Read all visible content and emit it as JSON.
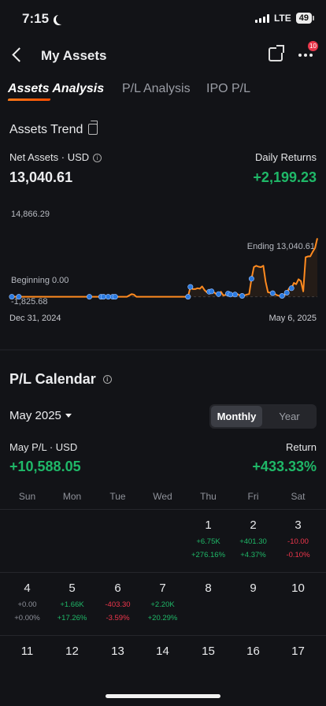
{
  "status": {
    "time": "7:15",
    "network": "LTE",
    "battery": "49"
  },
  "nav": {
    "title": "My Assets",
    "badge": "10"
  },
  "tabs": [
    {
      "label": "Assets Analysis",
      "active": true
    },
    {
      "label": "P/L Analysis",
      "active": false
    },
    {
      "label": "IPO P/L",
      "active": false
    }
  ],
  "trend": {
    "title": "Assets Trend",
    "net_assets_label": "Net Assets · USD",
    "net_assets_value": "13,040.61",
    "daily_returns_label": "Daily Returns",
    "daily_returns_value": "+2,199.23"
  },
  "chart_data": {
    "type": "line",
    "y_max_label": "14,866.29",
    "y_min_label": "-1,825.68",
    "beginning_label": "Beginning 0.00",
    "ending_label": "Ending 13,040.61",
    "start_date": "Dec 31, 2024",
    "end_date": "May 6, 2025",
    "ylim": [
      -1825.68,
      14866.29
    ],
    "line_color": "#FF8A1F",
    "marker_color": "#2A7AE0",
    "values": [
      0,
      0,
      0,
      0,
      0,
      0,
      0,
      0,
      0,
      0,
      0,
      0,
      0,
      0,
      0,
      0,
      0,
      0,
      0,
      0,
      0,
      0,
      0,
      0,
      0,
      0,
      0,
      0,
      0,
      0,
      0,
      0,
      0,
      0,
      0,
      0,
      0,
      0,
      0,
      0,
      0,
      0,
      0,
      0,
      0,
      0,
      0,
      0,
      0,
      0,
      0,
      300,
      600,
      450,
      0,
      0,
      0,
      0,
      0,
      0,
      0,
      0,
      0,
      0,
      0,
      0,
      0,
      0,
      0,
      0,
      0,
      0,
      0,
      0,
      0,
      0,
      0,
      2200,
      1700,
      1700,
      1900,
      1800,
      2300,
      1500,
      1000,
      1100,
      1200,
      1000,
      600,
      600,
      1100,
      300,
      400,
      700,
      500,
      300,
      500,
      600,
      300,
      200,
      300,
      500,
      600,
      4000,
      6600,
      6900,
      6700,
      6600,
      6900,
      3400,
      1000,
      900,
      800,
      600,
      300,
      200,
      200,
      300,
      900,
      1900,
      1900,
      3100,
      2800,
      3900,
      3500,
      1200,
      8800,
      9000,
      9000,
      10000,
      10841.38,
      13040.61
    ],
    "marker_indices": [
      1,
      4,
      34,
      39,
      40,
      42,
      44,
      45,
      76,
      77,
      85,
      86,
      89,
      93,
      94,
      96,
      99,
      103,
      112,
      116,
      118,
      120
    ]
  },
  "calendar": {
    "title": "P/L Calendar",
    "month": "May 2025",
    "seg_monthly": "Monthly",
    "seg_year": "Year",
    "month_pl_label": "May P/L · USD",
    "month_pl_value": "+10,588.05",
    "return_label": "Return",
    "return_value": "+433.33%",
    "weekdays": [
      "Sun",
      "Mon",
      "Tue",
      "Wed",
      "Thu",
      "Fri",
      "Sat"
    ],
    "days": [
      {
        "day": "1",
        "pl": "+6.75K",
        "ret": "+276.16%",
        "tone": "green"
      },
      {
        "day": "2",
        "pl": "+401.30",
        "ret": "+4.37%",
        "tone": "green"
      },
      {
        "day": "3",
        "pl": "-10.00",
        "ret": "-0.10%",
        "tone": "red"
      },
      {
        "day": "4",
        "pl": "+0.00",
        "ret": "+0.00%",
        "tone": "muted"
      },
      {
        "day": "5",
        "pl": "+1.66K",
        "ret": "+17.26%",
        "tone": "green"
      },
      {
        "day": "6",
        "pl": "-403.30",
        "ret": "-3.59%",
        "tone": "red"
      },
      {
        "day": "7",
        "pl": "+2.20K",
        "ret": "+20.29%",
        "tone": "green"
      },
      {
        "day": "8",
        "pl": "",
        "ret": "",
        "tone": "muted"
      },
      {
        "day": "9",
        "pl": "",
        "ret": "",
        "tone": "muted"
      },
      {
        "day": "10",
        "pl": "",
        "ret": "",
        "tone": "muted"
      },
      {
        "day": "11",
        "pl": "",
        "ret": "",
        "tone": "muted"
      },
      {
        "day": "12",
        "pl": "",
        "ret": "",
        "tone": "muted"
      },
      {
        "day": "13",
        "pl": "",
        "ret": "",
        "tone": "muted"
      },
      {
        "day": "14",
        "pl": "",
        "ret": "",
        "tone": "muted"
      },
      {
        "day": "15",
        "pl": "",
        "ret": "",
        "tone": "muted"
      },
      {
        "day": "16",
        "pl": "",
        "ret": "",
        "tone": "muted"
      },
      {
        "day": "17",
        "pl": "",
        "ret": "",
        "tone": "muted"
      }
    ]
  }
}
